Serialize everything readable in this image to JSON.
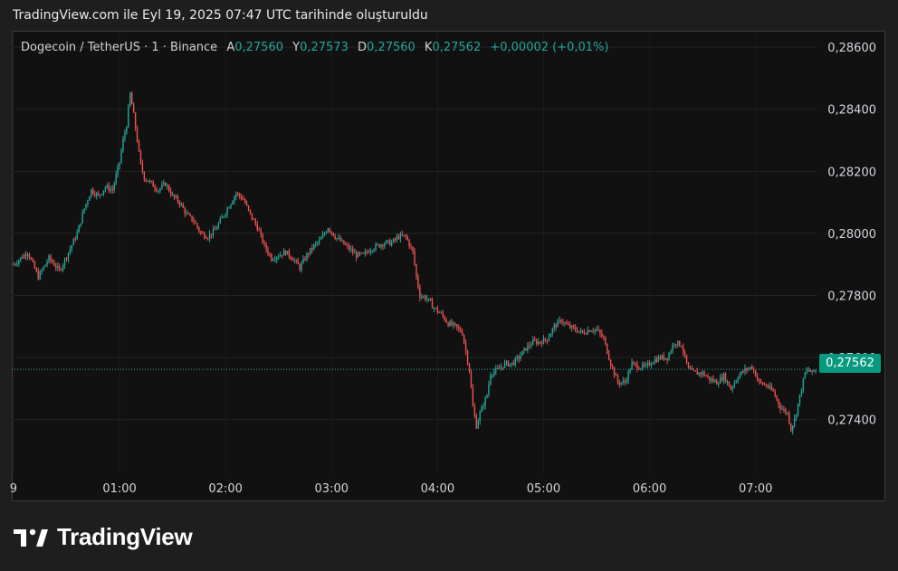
{
  "header": {
    "title": "TradingView.com ile Eyl 19, 2025 07:47 UTC tarihinde oluşturuldu"
  },
  "legend": {
    "symbol": "Dogecoin / TetherUS · 1 · Binance",
    "open_label": "A",
    "open": "0,27560",
    "high_label": "Y",
    "high": "0,27573",
    "low_label": "D",
    "low": "0,27560",
    "close_label": "K",
    "close": "0,27562",
    "change": "+0,00002 (+0,01%)"
  },
  "price_tag": "0,27562",
  "brand": {
    "name": "TradingView",
    "icon": "tradingview-logo-icon"
  },
  "colors": {
    "up": "#26a69a",
    "down": "#ef5350",
    "tag": "#089981",
    "background": "#111111"
  },
  "chart_data": {
    "type": "candlestick",
    "symbol": "DOGE/USDT",
    "interval": "1m",
    "y_ticks": [
      "0,28600",
      "0,28400",
      "0,28200",
      "0,28000",
      "0,27800",
      "0,27600",
      "0,27400"
    ],
    "y_tick_values": [
      0.286,
      0.284,
      0.282,
      0.28,
      0.278,
      0.276,
      0.274
    ],
    "ylim": [
      0.2723,
      0.2865
    ],
    "x_ticks": [
      "9",
      "01:00",
      "02:00",
      "03:00",
      "04:00",
      "05:00",
      "06:00",
      "07:00"
    ],
    "x_tick_minutes": [
      -60,
      0,
      60,
      120,
      180,
      240,
      300,
      360
    ],
    "x_range_minutes": [
      -61,
      395
    ],
    "last_price": 0.27562,
    "path": [
      [
        -60,
        0.279
      ],
      [
        -52,
        0.2794
      ],
      [
        -46,
        0.2786
      ],
      [
        -40,
        0.2792
      ],
      [
        -34,
        0.2788
      ],
      [
        -28,
        0.2795
      ],
      [
        -24,
        0.28
      ],
      [
        -20,
        0.2808
      ],
      [
        -16,
        0.2814
      ],
      [
        -12,
        0.2812
      ],
      [
        -8,
        0.2815
      ],
      [
        -4,
        0.2814
      ],
      [
        0,
        0.2823
      ],
      [
        2,
        0.283
      ],
      [
        4,
        0.2835
      ],
      [
        6,
        0.2845
      ],
      [
        8,
        0.2838
      ],
      [
        10,
        0.283
      ],
      [
        12,
        0.2822
      ],
      [
        14,
        0.2818
      ],
      [
        18,
        0.2816
      ],
      [
        22,
        0.2814
      ],
      [
        26,
        0.2816
      ],
      [
        30,
        0.2812
      ],
      [
        34,
        0.281
      ],
      [
        38,
        0.2806
      ],
      [
        42,
        0.2804
      ],
      [
        46,
        0.28
      ],
      [
        50,
        0.2799
      ],
      [
        54,
        0.2801
      ],
      [
        58,
        0.2805
      ],
      [
        62,
        0.2809
      ],
      [
        66,
        0.2813
      ],
      [
        70,
        0.2811
      ],
      [
        74,
        0.2806
      ],
      [
        78,
        0.2802
      ],
      [
        82,
        0.2796
      ],
      [
        86,
        0.2792
      ],
      [
        90,
        0.2793
      ],
      [
        94,
        0.2794
      ],
      [
        98,
        0.2792
      ],
      [
        102,
        0.2789
      ],
      [
        106,
        0.2793
      ],
      [
        110,
        0.2796
      ],
      [
        114,
        0.2798
      ],
      [
        118,
        0.2802
      ],
      [
        122,
        0.2799
      ],
      [
        126,
        0.2797
      ],
      [
        130,
        0.2795
      ],
      [
        134,
        0.2793
      ],
      [
        138,
        0.2793
      ],
      [
        142,
        0.2795
      ],
      [
        146,
        0.2796
      ],
      [
        150,
        0.2797
      ],
      [
        154,
        0.2797
      ],
      [
        158,
        0.2799
      ],
      [
        162,
        0.2799
      ],
      [
        166,
        0.2794
      ],
      [
        168,
        0.2786
      ],
      [
        170,
        0.278
      ],
      [
        174,
        0.2779
      ],
      [
        178,
        0.2776
      ],
      [
        182,
        0.2774
      ],
      [
        186,
        0.2771
      ],
      [
        190,
        0.277
      ],
      [
        194,
        0.2768
      ],
      [
        196,
        0.2762
      ],
      [
        198,
        0.2756
      ],
      [
        200,
        0.2744
      ],
      [
        202,
        0.2738
      ],
      [
        204,
        0.2742
      ],
      [
        206,
        0.2745
      ],
      [
        208,
        0.2748
      ],
      [
        210,
        0.2755
      ],
      [
        214,
        0.2756
      ],
      [
        218,
        0.2758
      ],
      [
        222,
        0.2758
      ],
      [
        226,
        0.276
      ],
      [
        230,
        0.2763
      ],
      [
        234,
        0.2765
      ],
      [
        238,
        0.2765
      ],
      [
        242,
        0.2766
      ],
      [
        246,
        0.277
      ],
      [
        250,
        0.2772
      ],
      [
        254,
        0.277
      ],
      [
        258,
        0.2769
      ],
      [
        262,
        0.2768
      ],
      [
        266,
        0.2769
      ],
      [
        270,
        0.2769
      ],
      [
        274,
        0.2766
      ],
      [
        278,
        0.2758
      ],
      [
        282,
        0.2752
      ],
      [
        286,
        0.2752
      ],
      [
        290,
        0.2758
      ],
      [
        294,
        0.2757
      ],
      [
        298,
        0.2757
      ],
      [
        302,
        0.2759
      ],
      [
        306,
        0.276
      ],
      [
        310,
        0.276
      ],
      [
        314,
        0.2765
      ],
      [
        318,
        0.2764
      ],
      [
        322,
        0.2756
      ],
      [
        326,
        0.2755
      ],
      [
        330,
        0.2755
      ],
      [
        334,
        0.2753
      ],
      [
        338,
        0.2752
      ],
      [
        342,
        0.2754
      ],
      [
        346,
        0.275
      ],
      [
        350,
        0.2754
      ],
      [
        354,
        0.2756
      ],
      [
        358,
        0.2757
      ],
      [
        362,
        0.2752
      ],
      [
        366,
        0.2751
      ],
      [
        370,
        0.2749
      ],
      [
        374,
        0.2744
      ],
      [
        378,
        0.2742
      ],
      [
        380,
        0.2737
      ],
      [
        382,
        0.274
      ],
      [
        384,
        0.2745
      ],
      [
        386,
        0.275
      ],
      [
        388,
        0.2755
      ],
      [
        390,
        0.2756
      ],
      [
        392,
        0.2755
      ],
      [
        394,
        0.2756
      ]
    ]
  }
}
